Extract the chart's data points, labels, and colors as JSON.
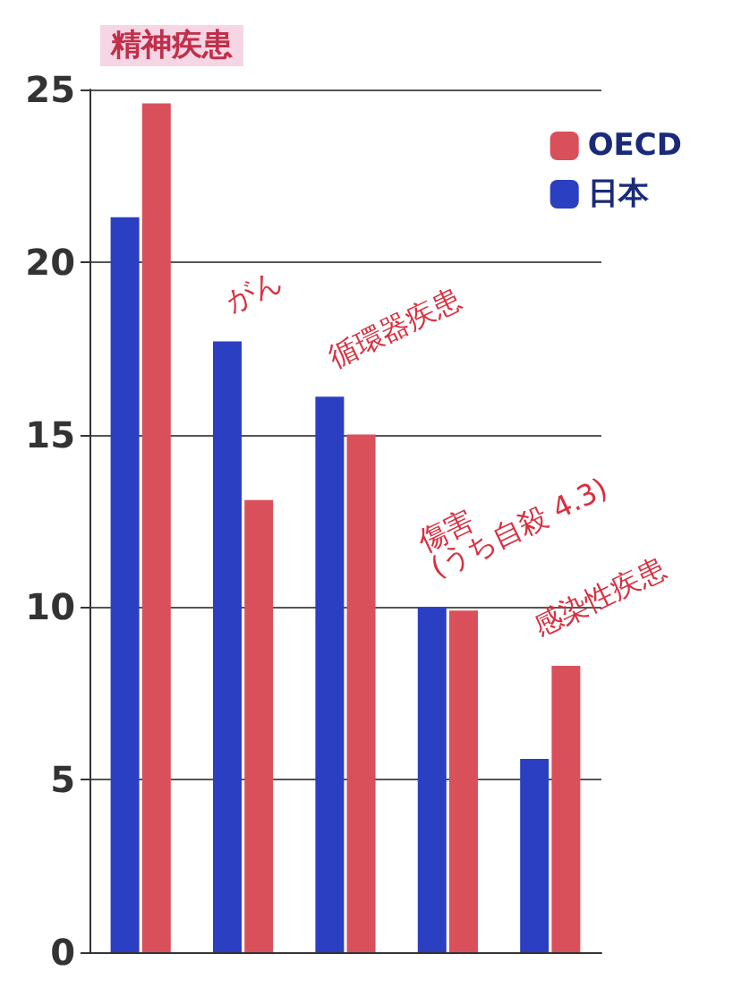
{
  "chart_data": {
    "type": "bar",
    "categories": [
      null,
      null,
      null,
      null,
      null
    ],
    "series": [
      {
        "name": "日本",
        "color": "#2b3fc2",
        "values": [
          21.3,
          17.7,
          16.1,
          10.0,
          5.6
        ]
      },
      {
        "name": "OECD",
        "color": "#d9505a",
        "values": [
          24.6,
          13.1,
          15.0,
          9.9,
          8.3
        ]
      }
    ],
    "annotations": [
      "精神疾患",
      "がん",
      "循環器疾患",
      "傷害\n(うち自殺 4.3)",
      "感染性疾患"
    ],
    "ylim": [
      0,
      25
    ],
    "yticks": [
      0,
      5,
      10,
      15,
      20,
      25
    ],
    "grid": "y",
    "legend": "top right"
  }
}
